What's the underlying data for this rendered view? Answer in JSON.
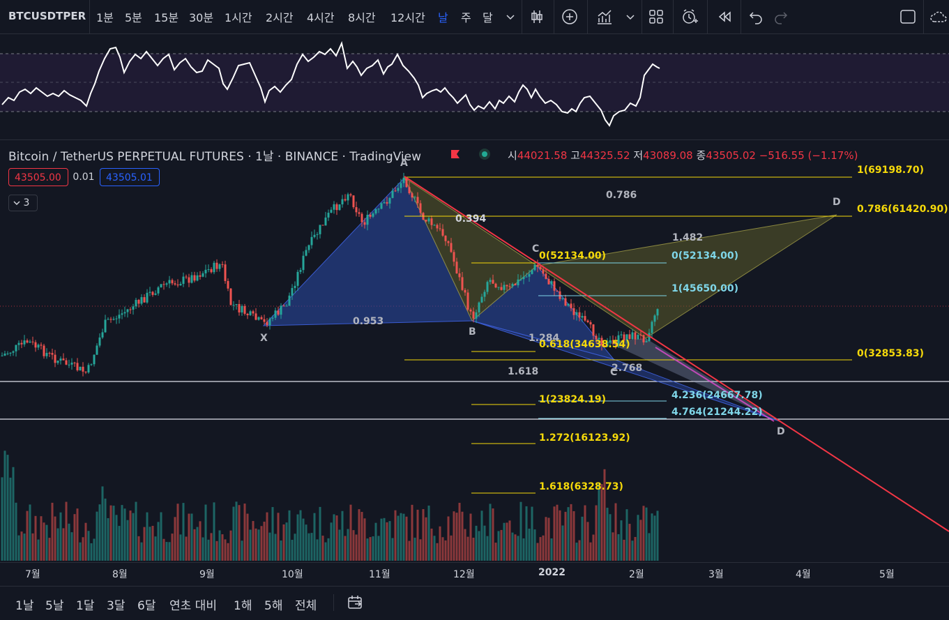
{
  "toolbar": {
    "symbol": "BTCUSDTPER",
    "intervals": [
      "1분",
      "5분",
      "15분",
      "30분",
      "1시간",
      "2시간",
      "4시간",
      "8시간",
      "12시간",
      "날",
      "주",
      "달"
    ],
    "active_interval": "날"
  },
  "legend": {
    "title": "Bitcoin / TetherUS PERPETUAL FUTURES · 1날 · BINANCE · TradingView",
    "open_key": "시",
    "open": "44021.58",
    "high_key": "고",
    "high": "44325.52",
    "low_key": "저",
    "low": "43089.08",
    "close_key": "종",
    "close": "43505.02",
    "change": "−516.55 (−1.17%)",
    "bid": "43505.00",
    "spread": "0.01",
    "ask": "43505.01",
    "indicators_count": "3"
  },
  "chart_data": {
    "type": "candlestick",
    "symbol": "BTCUSDT Perpetual",
    "pattern_points": [
      "X",
      "A",
      "B",
      "C",
      "D"
    ],
    "fib_labels": [
      "1(69198.70)",
      "0.786(61420.90)",
      "0(52134.00)",
      "0(52134.00)",
      "1(45650.00)",
      "0.618(34638.54)",
      "0(32853.83)",
      "1(23824.19)",
      "4.236(24667.78)",
      "4.764(21244.22)",
      "1.272(16123.92)",
      "1.618(6328.73)"
    ],
    "ratio_labels": [
      "0.786",
      "0.394",
      "1.482",
      "0.953",
      "1.284",
      "1.618",
      "2.768"
    ],
    "x_ticks": [
      "7월",
      "8월",
      "9월",
      "10월",
      "11월",
      "12월",
      "2022",
      "2월",
      "3월",
      "4월",
      "5월"
    ]
  },
  "colors": {
    "background": "#131722",
    "up": "#26a69a",
    "down": "#ef5350",
    "fib_yellow": "#f5d90a",
    "fib_cyan": "#7fd6e8",
    "trendline": "#f23645",
    "pattern_blue": "#2a4aa8",
    "pattern_olive": "#5c5a2a"
  },
  "range_bar": {
    "ranges": [
      "1날",
      "5날",
      "1달",
      "3달",
      "6달",
      "연초 대비",
      "1해",
      "5해",
      "전체"
    ]
  }
}
